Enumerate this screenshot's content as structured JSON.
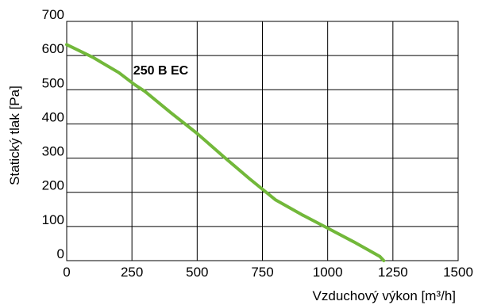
{
  "chart_data": {
    "type": "line",
    "title": "",
    "xlabel": "Vzduchový výkon [m³/h]",
    "ylabel": "Statický tlak [Pa]",
    "xlim": [
      0,
      1500
    ],
    "ylim": [
      0,
      700
    ],
    "xticks": [
      "0",
      "250",
      "500",
      "750",
      "1000",
      "1250",
      "1500"
    ],
    "yticks": [
      "0",
      "100",
      "200",
      "300",
      "400",
      "500",
      "600",
      "700"
    ],
    "grid": true,
    "series": [
      {
        "name": "250 B EC",
        "color": "#72b83a",
        "x": [
          0,
          100,
          200,
          260,
          300,
          400,
          500,
          600,
          700,
          800,
          900,
          1000,
          1100,
          1200,
          1215
        ],
        "y": [
          632,
          595,
          550,
          515,
          495,
          432,
          372,
          305,
          240,
          178,
          135,
          95,
          55,
          12,
          0
        ]
      }
    ]
  }
}
